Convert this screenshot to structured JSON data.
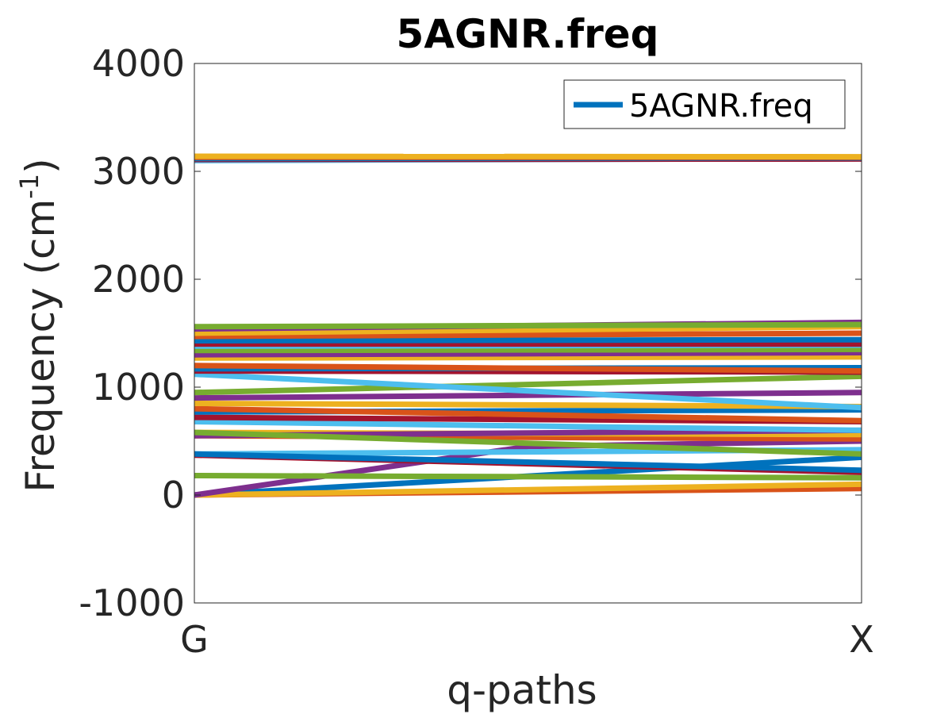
{
  "chart_data": {
    "type": "line",
    "title": "5AGNR.freq",
    "xlabel": "q-paths",
    "ylabel_main": "Frequency (cm",
    "ylabel_sup": "-1",
    "ylabel_close": ")",
    "xticks": [
      "G",
      "X"
    ],
    "yticks": [
      "-1000",
      "0",
      "1000",
      "2000",
      "3000",
      "4000"
    ],
    "yticks_values": [
      -1000,
      0,
      1000,
      2000,
      3000,
      4000
    ],
    "ylim": [
      -1000,
      4000
    ],
    "xlim": [
      0,
      1
    ],
    "grid": false,
    "legend": {
      "label": "5AGNR.freq",
      "position": "top-right",
      "color": "#0072BD"
    },
    "color_cycle": [
      "#0072BD",
      "#D95319",
      "#EDB120",
      "#7E2F8E",
      "#77AC30",
      "#4DBEEE",
      "#A2142F"
    ],
    "series": [
      {
        "x": [
          0,
          1
        ],
        "y": [
          0,
          350
        ]
      },
      {
        "x": [
          0,
          1
        ],
        "y": [
          0,
          60
        ]
      },
      {
        "x": [
          0,
          1
        ],
        "y": [
          0,
          100
        ]
      },
      {
        "x": [
          0,
          0.5,
          1
        ],
        "y": [
          0,
          450,
          500
        ]
      },
      {
        "x": [
          0,
          1
        ],
        "y": [
          180,
          160
        ]
      },
      {
        "x": [
          0,
          0.5,
          1
        ],
        "y": [
          380,
          400,
          420
        ]
      },
      {
        "x": [
          0,
          1
        ],
        "y": [
          370,
          210
        ]
      },
      {
        "x": [
          0,
          1
        ],
        "y": [
          380,
          230
        ]
      },
      {
        "x": [
          0,
          1
        ],
        "y": [
          550,
          520
        ]
      },
      {
        "x": [
          0,
          1
        ],
        "y": [
          580,
          560
        ]
      },
      {
        "x": [
          0,
          1
        ],
        "y": [
          550,
          600
        ]
      },
      {
        "x": [
          0,
          1
        ],
        "y": [
          580,
          380
        ]
      },
      {
        "x": [
          0,
          1
        ],
        "y": [
          680,
          600
        ]
      },
      {
        "x": [
          0,
          1
        ],
        "y": [
          720,
          680
        ]
      },
      {
        "x": [
          0,
          1
        ],
        "y": [
          770,
          790
        ]
      },
      {
        "x": [
          0,
          1
        ],
        "y": [
          800,
          690
        ]
      },
      {
        "x": [
          0,
          1
        ],
        "y": [
          850,
          820
        ]
      },
      {
        "x": [
          0,
          1
        ],
        "y": [
          900,
          950
        ]
      },
      {
        "x": [
          0,
          1
        ],
        "y": [
          950,
          1100
        ]
      },
      {
        "x": [
          0,
          1
        ],
        "y": [
          1120,
          810
        ]
      },
      {
        "x": [
          0,
          1
        ],
        "y": [
          1150,
          1140
        ]
      },
      {
        "x": [
          0,
          1
        ],
        "y": [
          1170,
          1180
        ]
      },
      {
        "x": [
          0,
          1
        ],
        "y": [
          1200,
          1150
        ]
      },
      {
        "x": [
          0,
          1
        ],
        "y": [
          1270,
          1280
        ]
      },
      {
        "x": [
          0,
          1
        ],
        "y": [
          1300,
          1320
        ]
      },
      {
        "x": [
          0,
          1
        ],
        "y": [
          1340,
          1350
        ]
      },
      {
        "x": [
          0,
          1
        ],
        "y": [
          1380,
          1390
        ]
      },
      {
        "x": [
          0,
          1
        ],
        "y": [
          1400,
          1400
        ]
      },
      {
        "x": [
          0,
          1
        ],
        "y": [
          1430,
          1440
        ]
      },
      {
        "x": [
          0,
          1
        ],
        "y": [
          1470,
          1500
        ]
      },
      {
        "x": [
          0,
          1
        ],
        "y": [
          1500,
          1560
        ]
      },
      {
        "x": [
          0,
          1
        ],
        "y": [
          1540,
          1600
        ]
      },
      {
        "x": [
          0,
          1
        ],
        "y": [
          1560,
          1580
        ]
      },
      {
        "x": [
          0,
          1
        ],
        "y": [
          3100,
          3120
        ]
      },
      {
        "x": [
          0,
          1
        ],
        "y": [
          3110,
          3115
        ]
      },
      {
        "x": [
          0,
          1
        ],
        "y": [
          3120,
          3125
        ]
      },
      {
        "x": [
          0,
          1
        ],
        "y": [
          3130,
          3130
        ]
      },
      {
        "x": [
          0,
          1
        ],
        "y": [
          3140,
          3135
        ]
      }
    ]
  }
}
